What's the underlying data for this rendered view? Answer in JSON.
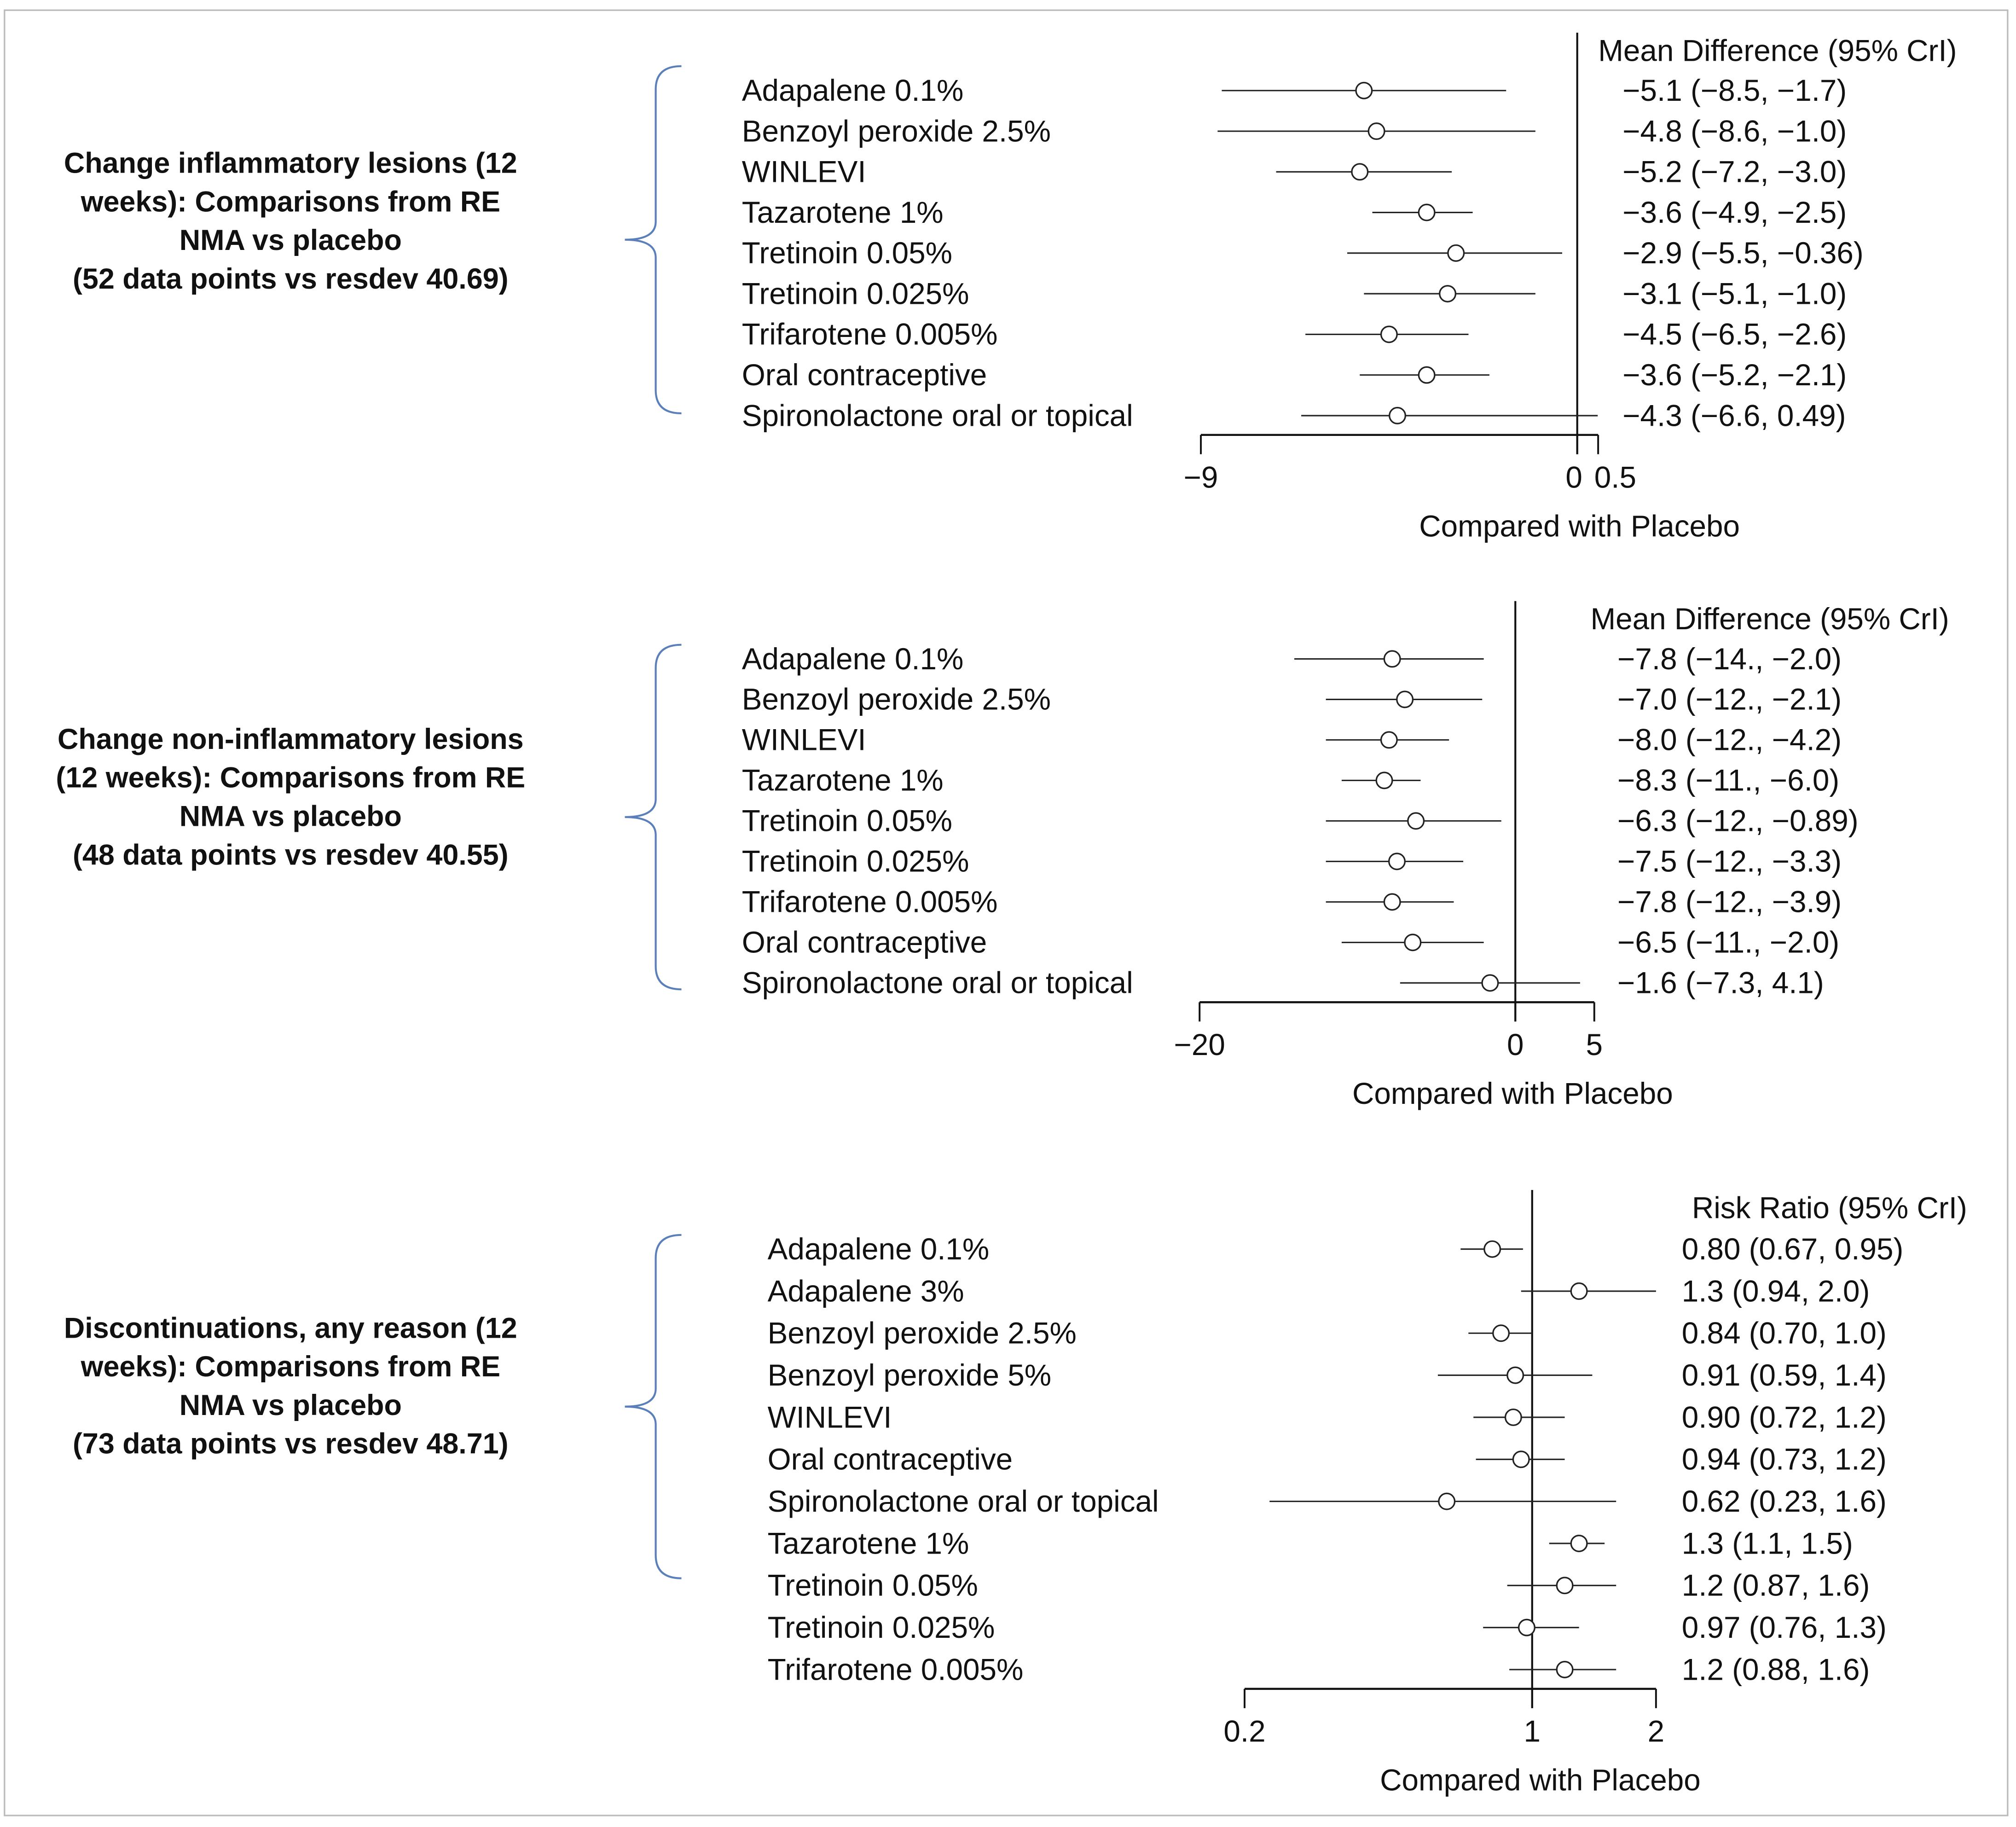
{
  "chart_data": [
    {
      "type": "forest",
      "title_lines": [
        "Change inflammatory lesions (12",
        "weeks): Comparisons from RE",
        "NMA vs placebo",
        "(52 data points vs resdev 40.69)"
      ],
      "header": "Mean Difference (95% CrI)",
      "xlabel": "Compared with Placebo",
      "scale": "linear",
      "xlim": [
        -9,
        0.5
      ],
      "reference": 0,
      "ticks": [
        {
          "v": -9,
          "label": "−9"
        },
        {
          "v": 0,
          "label": "0"
        },
        {
          "v": 0.5,
          "label": "0.5"
        }
      ],
      "rows": [
        {
          "label": "Adapalene 0.1%",
          "est": -5.1,
          "lo": -8.5,
          "hi": -1.7,
          "text": "−5.1 (−8.5, −1.7)"
        },
        {
          "label": "Benzoyl peroxide 2.5%",
          "est": -4.8,
          "lo": -8.6,
          "hi": -1.0,
          "text": "−4.8 (−8.6, −1.0)"
        },
        {
          "label": "WINLEVI",
          "est": -5.2,
          "lo": -7.2,
          "hi": -3.0,
          "text": "−5.2 (−7.2, −3.0)"
        },
        {
          "label": "Tazarotene 1%",
          "est": -3.6,
          "lo": -4.9,
          "hi": -2.5,
          "text": "−3.6 (−4.9, −2.5)"
        },
        {
          "label": "Tretinoin 0.05%",
          "est": -2.9,
          "lo": -5.5,
          "hi": -0.36,
          "text": "−2.9 (−5.5, −0.36)"
        },
        {
          "label": "Tretinoin 0.025%",
          "est": -3.1,
          "lo": -5.1,
          "hi": -1.0,
          "text": "−3.1 (−5.1, −1.0)"
        },
        {
          "label": "Trifarotene 0.005%",
          "est": -4.5,
          "lo": -6.5,
          "hi": -2.6,
          "text": "−4.5 (−6.5, −2.6)"
        },
        {
          "label": "Oral contraceptive",
          "est": -3.6,
          "lo": -5.2,
          "hi": -2.1,
          "text": "−3.6 (−5.2, −2.1)"
        },
        {
          "label": "Spironolactone oral or topical",
          "est": -4.3,
          "lo": -6.6,
          "hi": 0.49,
          "text": "−4.3 (−6.6, 0.49)"
        }
      ]
    },
    {
      "type": "forest",
      "title_lines": [
        "Change non-inflammatory lesions",
        "(12 weeks): Comparisons from RE",
        "NMA vs placebo",
        "(48 data points vs resdev 40.55)"
      ],
      "header": "Mean Difference (95% CrI)",
      "xlabel": "Compared with Placebo",
      "scale": "linear",
      "xlim": [
        -20,
        5
      ],
      "reference": 0,
      "ticks": [
        {
          "v": -20,
          "label": "−20"
        },
        {
          "v": 0,
          "label": "0"
        },
        {
          "v": 5,
          "label": "5"
        }
      ],
      "rows": [
        {
          "label": "Adapalene 0.1%",
          "est": -7.8,
          "lo": -14,
          "hi": -2.0,
          "text": "−7.8 (−14., −2.0)"
        },
        {
          "label": "Benzoyl peroxide 2.5%",
          "est": -7.0,
          "lo": -12,
          "hi": -2.1,
          "text": "−7.0 (−12., −2.1)"
        },
        {
          "label": "WINLEVI",
          "est": -8.0,
          "lo": -12,
          "hi": -4.2,
          "text": "−8.0 (−12., −4.2)"
        },
        {
          "label": "Tazarotene 1%",
          "est": -8.3,
          "lo": -11,
          "hi": -6.0,
          "text": "−8.3 (−11., −6.0)"
        },
        {
          "label": "Tretinoin 0.05%",
          "est": -6.3,
          "lo": -12,
          "hi": -0.89,
          "text": "−6.3 (−12., −0.89)"
        },
        {
          "label": "Tretinoin 0.025%",
          "est": -7.5,
          "lo": -12,
          "hi": -3.3,
          "text": "−7.5 (−12., −3.3)"
        },
        {
          "label": "Trifarotene 0.005%",
          "est": -7.8,
          "lo": -12,
          "hi": -3.9,
          "text": "−7.8 (−12., −3.9)"
        },
        {
          "label": "Oral contraceptive",
          "est": -6.5,
          "lo": -11,
          "hi": -2.0,
          "text": "−6.5 (−11., −2.0)"
        },
        {
          "label": "Spironolactone oral or topical",
          "est": -1.6,
          "lo": -7.3,
          "hi": 4.1,
          "text": "−1.6 (−7.3, 4.1)"
        }
      ]
    },
    {
      "type": "forest",
      "title_lines": [
        "Discontinuations, any reason (12",
        "weeks): Comparisons from RE",
        "NMA vs placebo",
        "(73 data points vs resdev 48.71)"
      ],
      "header": "Risk Ratio (95% CrI)",
      "xlabel": "Compared with Placebo",
      "scale": "log",
      "xlim": [
        0.2,
        2
      ],
      "reference": 1,
      "ticks": [
        {
          "v": 0.2,
          "label": "0.2"
        },
        {
          "v": 1,
          "label": "1"
        },
        {
          "v": 2,
          "label": "2"
        }
      ],
      "rows": [
        {
          "label": "Adapalene 0.1%",
          "est": 0.8,
          "lo": 0.67,
          "hi": 0.95,
          "text": "0.80 (0.67, 0.95)"
        },
        {
          "label": "Adapalene 3%",
          "est": 1.3,
          "lo": 0.94,
          "hi": 2.0,
          "text": "1.3 (0.94, 2.0)"
        },
        {
          "label": "Benzoyl peroxide 2.5%",
          "est": 0.84,
          "lo": 0.7,
          "hi": 1.0,
          "text": "0.84 (0.70, 1.0)"
        },
        {
          "label": "Benzoyl peroxide 5%",
          "est": 0.91,
          "lo": 0.59,
          "hi": 1.4,
          "text": "0.91 (0.59, 1.4)"
        },
        {
          "label": "WINLEVI",
          "est": 0.9,
          "lo": 0.72,
          "hi": 1.2,
          "text": "0.90 (0.72, 1.2)"
        },
        {
          "label": "Oral contraceptive",
          "est": 0.94,
          "lo": 0.73,
          "hi": 1.2,
          "text": "0.94 (0.73, 1.2)"
        },
        {
          "label": "Spironolactone oral or topical",
          "est": 0.62,
          "lo": 0.23,
          "hi": 1.6,
          "text": "0.62 (0.23, 1.6)"
        },
        {
          "label": "Tazarotene 1%",
          "est": 1.3,
          "lo": 1.1,
          "hi": 1.5,
          "text": "1.3 (1.1, 1.5)"
        },
        {
          "label": "Tretinoin 0.05%",
          "est": 1.2,
          "lo": 0.87,
          "hi": 1.6,
          "text": "1.2 (0.87, 1.6)"
        },
        {
          "label": "Tretinoin 0.025%",
          "est": 0.97,
          "lo": 0.76,
          "hi": 1.3,
          "text": "0.97 (0.76, 1.3)"
        },
        {
          "label": "Trifarotene 0.005%",
          "est": 1.2,
          "lo": 0.88,
          "hi": 1.6,
          "text": "1.2 (0.88, 1.6)"
        }
      ]
    }
  ]
}
